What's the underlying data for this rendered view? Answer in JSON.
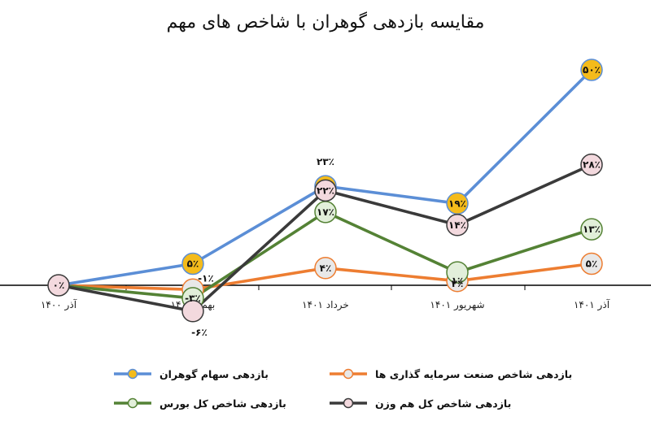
{
  "chart_data": {
    "type": "line",
    "title": "مقایسه بازدهی گوهران با شاخص های مهم",
    "categories": [
      "آذر ۱۴۰۰",
      "بهمن ۱۴۰۰",
      "خرداد ۱۴۰۱",
      "شهریور ۱۴۰۱",
      "آذر ۱۴۰۱"
    ],
    "y_unit": "%",
    "series": [
      {
        "name": "بازدهی سهام گوهران",
        "values": [
          0,
          5,
          23,
          19,
          50
        ],
        "labels": [
          "",
          "۵٪",
          "۲۳٪",
          "۱۹٪",
          "۵۰٪"
        ],
        "color": "#5b8ed6",
        "marker_fill": "#f4bb1b"
      },
      {
        "name": "بازدهی شاخص صنعت سرمایه گذاری ها",
        "values": [
          0,
          -1,
          4,
          1,
          5
        ],
        "labels": [
          "",
          "-۱٪",
          "۴٪",
          "۱٪",
          "۵٪"
        ],
        "color": "#ed7d31",
        "marker_fill": "#e8e8e8"
      },
      {
        "name": "بازدهی شاخص کل بورس",
        "values": [
          0,
          -3,
          17,
          3,
          13
        ],
        "labels": [
          "",
          "-۳٪",
          "۱۷٪",
          "۳٪",
          "۱۳٪"
        ],
        "color": "#548235",
        "marker_fill": "#e2efda"
      },
      {
        "name": "بازدهی شاخص کل هم وزن",
        "values": [
          0,
          -6,
          22,
          14,
          28
        ],
        "labels": [
          "۰٪",
          "-۶٪",
          "۲۲٪",
          "۱۴٪",
          "۲۸٪"
        ],
        "color": "#3a3a3a",
        "marker_fill": "#f3d9de"
      }
    ],
    "ylim": [
      -8,
      52
    ],
    "legend": "bottom",
    "grid": false
  }
}
